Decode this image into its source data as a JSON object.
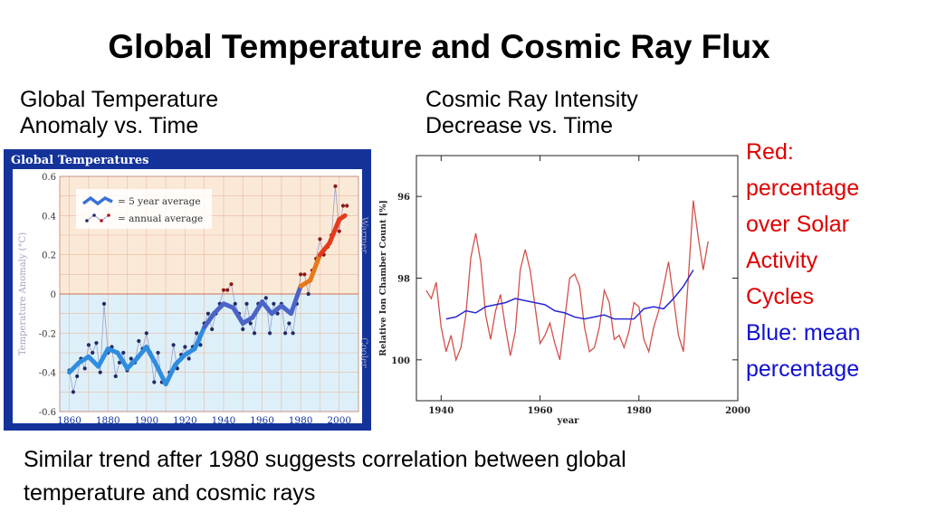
{
  "slide": {
    "title": "Global Temperature and Cosmic Ray Flux",
    "left_subtitle": [
      "Global Temperature",
      "Anomaly vs. Time"
    ],
    "right_subtitle": [
      "Cosmic Ray Intensity",
      "Decrease vs. Time"
    ],
    "legend_lines": [
      {
        "text": "Red:",
        "color": "#e00000"
      },
      {
        "text": "percentage",
        "color": "#e00000"
      },
      {
        "text": "over Solar",
        "color": "#e00000"
      },
      {
        "text": "Activity",
        "color": "#e00000"
      },
      {
        "text": "Cycles",
        "color": "#e00000"
      },
      {
        "text": "Blue: mean",
        "color": "#1010d0"
      },
      {
        "text": "percentage",
        "color": "#1010d0"
      }
    ],
    "conclusion": [
      "Similar trend after 1980 suggests correlation between global",
      "temperature and cosmic rays"
    ]
  },
  "chart_data": [
    {
      "type": "line",
      "title": "Global Temperatures",
      "xlabel": "",
      "ylabel": "Temperature Anomaly (°C)",
      "xlim": [
        1855,
        2010
      ],
      "ylim": [
        -0.6,
        0.6
      ],
      "x_ticks": [
        1860,
        1880,
        1900,
        1920,
        1940,
        1960,
        1980,
        2000
      ],
      "y_ticks": [
        -0.6,
        -0.4,
        -0.2,
        0,
        0.2,
        0.4,
        0.6
      ],
      "y_tick_labels": [
        "-0.6",
        "-0.4",
        "-0.2",
        "0",
        "0.2",
        "0.4",
        "0.6"
      ],
      "region_labels": {
        "warmer": "Warmer",
        "cooler": "Cooler"
      },
      "legend": [
        "= 5 year average",
        "= annual average"
      ],
      "colors": {
        "frame": "#14339a",
        "warm_bg": "#fbe9d7",
        "cool_bg": "#ddf0f9",
        "cool_line": "#2f8de0",
        "warm_line": "#e53a1a",
        "points": "#222a66",
        "thin": "#9aa0c8"
      },
      "series": [
        {
          "name": "5 year average",
          "x": [
            1860,
            1865,
            1870,
            1875,
            1880,
            1885,
            1890,
            1895,
            1900,
            1905,
            1910,
            1915,
            1920,
            1925,
            1930,
            1935,
            1940,
            1945,
            1950,
            1955,
            1960,
            1965,
            1970,
            1975,
            1980,
            1985,
            1990,
            1995,
            2000,
            2003
          ],
          "values": [
            -0.4,
            -0.35,
            -0.32,
            -0.37,
            -0.28,
            -0.3,
            -0.38,
            -0.33,
            -0.27,
            -0.36,
            -0.46,
            -0.36,
            -0.31,
            -0.28,
            -0.17,
            -0.1,
            -0.05,
            -0.07,
            -0.15,
            -0.12,
            -0.04,
            -0.1,
            -0.06,
            -0.1,
            0.04,
            0.07,
            0.2,
            0.26,
            0.38,
            0.4
          ]
        },
        {
          "name": "annual average",
          "x": [
            1860,
            1862,
            1864,
            1866,
            1868,
            1870,
            1872,
            1874,
            1876,
            1878,
            1880,
            1882,
            1884,
            1886,
            1888,
            1890,
            1892,
            1894,
            1896,
            1898,
            1900,
            1902,
            1904,
            1906,
            1908,
            1910,
            1912,
            1914,
            1916,
            1918,
            1920,
            1922,
            1924,
            1926,
            1928,
            1930,
            1932,
            1934,
            1936,
            1938,
            1940,
            1942,
            1944,
            1946,
            1948,
            1950,
            1952,
            1954,
            1956,
            1958,
            1960,
            1962,
            1964,
            1966,
            1968,
            1970,
            1972,
            1974,
            1976,
            1978,
            1980,
            1982,
            1984,
            1986,
            1988,
            1990,
            1992,
            1994,
            1996,
            1998,
            2000,
            2002,
            2004
          ],
          "values": [
            -0.39,
            -0.5,
            -0.42,
            -0.33,
            -0.38,
            -0.26,
            -0.3,
            -0.25,
            -0.4,
            -0.05,
            -0.3,
            -0.27,
            -0.42,
            -0.35,
            -0.3,
            -0.39,
            -0.33,
            -0.35,
            -0.24,
            -0.28,
            -0.2,
            -0.3,
            -0.45,
            -0.3,
            -0.45,
            -0.45,
            -0.4,
            -0.26,
            -0.38,
            -0.31,
            -0.27,
            -0.33,
            -0.27,
            -0.2,
            -0.26,
            -0.15,
            -0.1,
            -0.18,
            -0.1,
            -0.05,
            0.02,
            0.02,
            0.05,
            -0.05,
            -0.1,
            -0.18,
            -0.05,
            -0.15,
            -0.2,
            -0.05,
            -0.04,
            -0.02,
            -0.2,
            -0.05,
            -0.1,
            -0.05,
            -0.2,
            -0.15,
            -0.2,
            -0.05,
            0.1,
            0.1,
            0.0,
            0.12,
            0.18,
            0.28,
            0.2,
            0.24,
            0.3,
            0.55,
            0.32,
            0.45,
            0.45
          ]
        }
      ]
    },
    {
      "type": "line",
      "title": "",
      "xlabel": "year",
      "ylabel": "Relative Ion Chamber Count [%]",
      "xlim": [
        1935,
        2000
      ],
      "ylim": [
        101,
        95
      ],
      "y_inverted": true,
      "x_ticks": [
        1940,
        1960,
        1980,
        2000
      ],
      "y_ticks": [
        96,
        98,
        100
      ],
      "colors": {
        "red": "#d2504a",
        "blue": "#2828d8"
      },
      "series": [
        {
          "name": "Red: percentage over Solar Activity Cycles",
          "x": [
            1937,
            1938,
            1939,
            1940,
            1941,
            1942,
            1943,
            1944,
            1945,
            1946,
            1947,
            1948,
            1949,
            1950,
            1951,
            1952,
            1953,
            1954,
            1955,
            1956,
            1957,
            1958,
            1959,
            1960,
            1961,
            1962,
            1963,
            1964,
            1965,
            1966,
            1967,
            1968,
            1969,
            1970,
            1971,
            1972,
            1973,
            1974,
            1975,
            1976,
            1977,
            1978,
            1979,
            1980,
            1981,
            1982,
            1983,
            1984,
            1985,
            1986,
            1987,
            1988,
            1989,
            1990,
            1991,
            1992,
            1993,
            1994
          ],
          "values": [
            98.3,
            98.5,
            98.1,
            99.2,
            99.8,
            99.4,
            100.0,
            99.7,
            98.9,
            97.5,
            96.9,
            97.6,
            98.9,
            99.5,
            98.8,
            98.4,
            99.2,
            99.9,
            99.3,
            97.8,
            97.3,
            97.8,
            98.7,
            99.6,
            99.4,
            99.1,
            99.6,
            100.0,
            99.0,
            98.0,
            97.9,
            98.2,
            99.2,
            99.8,
            99.7,
            99.2,
            98.3,
            98.6,
            99.5,
            99.4,
            99.7,
            99.3,
            98.6,
            98.7,
            99.5,
            99.8,
            99.2,
            98.8,
            98.2,
            97.6,
            98.5,
            99.4,
            99.8,
            98.0,
            96.1,
            97.0,
            97.8,
            97.1
          ]
        },
        {
          "name": "Blue: mean percentage",
          "x": [
            1941,
            1943,
            1945,
            1947,
            1949,
            1951,
            1953,
            1955,
            1957,
            1959,
            1961,
            1963,
            1965,
            1967,
            1969,
            1971,
            1973,
            1975,
            1977,
            1979,
            1981,
            1983,
            1985,
            1987,
            1989,
            1991
          ],
          "values": [
            99.0,
            98.95,
            98.8,
            98.85,
            98.7,
            98.65,
            98.6,
            98.5,
            98.55,
            98.6,
            98.65,
            98.8,
            98.85,
            98.95,
            99.0,
            98.95,
            98.9,
            99.0,
            99.0,
            99.0,
            98.75,
            98.7,
            98.75,
            98.5,
            98.2,
            97.8
          ]
        }
      ]
    }
  ]
}
